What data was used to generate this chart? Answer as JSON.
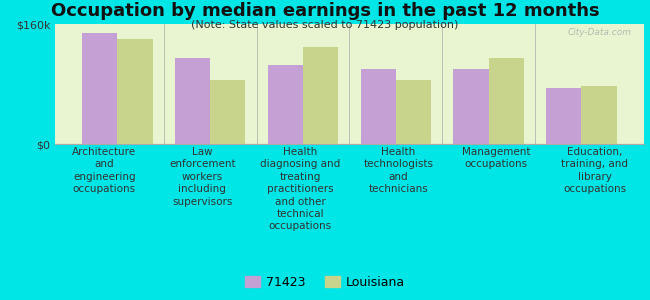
{
  "title": "Occupation by median earnings in the past 12 months",
  "subtitle": "(Note: State values scaled to 71423 population)",
  "categories": [
    "Architecture\nand\nengineering\noccupations",
    "Law\nenforcement\nworkers\nincluding\nsupervisors",
    "Health\ndiagnosing and\ntreating\npractitioners\nand other\ntechnical\noccupations",
    "Health\ntechnologists\nand\ntechnicians",
    "Management\noccupations",
    "Education,\ntraining, and\nlibrary\noccupations"
  ],
  "values_71423": [
    148000,
    115000,
    105000,
    100000,
    100000,
    75000
  ],
  "values_louisiana": [
    140000,
    85000,
    130000,
    85000,
    115000,
    78000
  ],
  "color_71423": "#c4a0d4",
  "color_louisiana": "#c8d48c",
  "ylim": [
    0,
    160000
  ],
  "ytick_labels": [
    "$0",
    "$160k"
  ],
  "background_color": "#e8f5d0",
  "outer_background": "#00e5e5",
  "legend_label_71423": "71423",
  "legend_label_louisiana": "Louisiana",
  "watermark": "City-Data.com",
  "title_fontsize": 13,
  "subtitle_fontsize": 8,
  "tick_label_fontsize": 7.5,
  "ytick_fontsize": 8
}
